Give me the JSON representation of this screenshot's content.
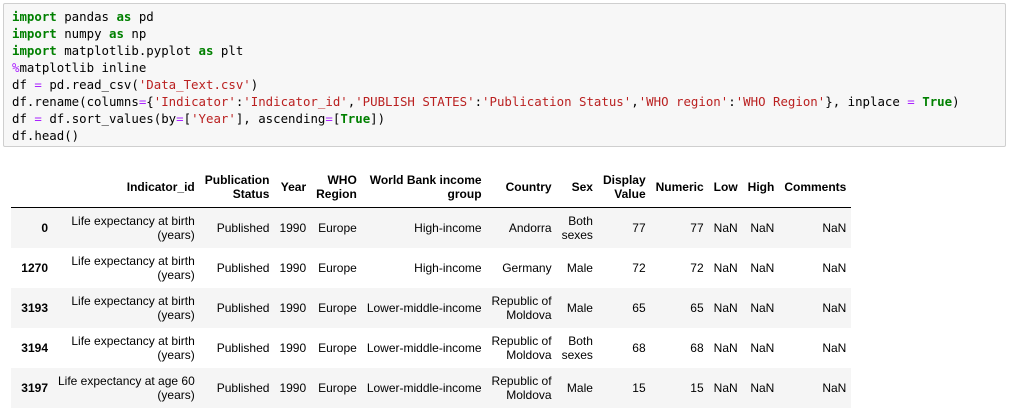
{
  "code_cell": {
    "lines": [
      [
        {
          "t": "import",
          "c": "kw"
        },
        {
          "t": " pandas "
        },
        {
          "t": "as",
          "c": "kw"
        },
        {
          "t": " pd"
        }
      ],
      [
        {
          "t": "import",
          "c": "kw"
        },
        {
          "t": " numpy "
        },
        {
          "t": "as",
          "c": "kw"
        },
        {
          "t": " np"
        }
      ],
      [
        {
          "t": "import",
          "c": "kw"
        },
        {
          "t": " matplotlib.pyplot "
        },
        {
          "t": "as",
          "c": "kw"
        },
        {
          "t": " plt"
        }
      ],
      [
        {
          "t": "%",
          "c": "mag"
        },
        {
          "t": "matplotlib inline"
        }
      ],
      [
        {
          "t": "df "
        },
        {
          "t": "=",
          "c": "op"
        },
        {
          "t": " pd.read_csv("
        },
        {
          "t": "'Data_Text.csv'",
          "c": "str"
        },
        {
          "t": ")"
        }
      ],
      [
        {
          "t": "df.rename(columns"
        },
        {
          "t": "=",
          "c": "op"
        },
        {
          "t": "{"
        },
        {
          "t": "'Indicator'",
          "c": "str"
        },
        {
          "t": ":"
        },
        {
          "t": "'Indicator_id'",
          "c": "str"
        },
        {
          "t": ","
        },
        {
          "t": "'PUBLISH STATES'",
          "c": "str"
        },
        {
          "t": ":"
        },
        {
          "t": "'Publication Status'",
          "c": "str"
        },
        {
          "t": ","
        },
        {
          "t": "'WHO region'",
          "c": "str"
        },
        {
          "t": ":"
        },
        {
          "t": "'WHO Region'",
          "c": "str"
        },
        {
          "t": "}, inplace "
        },
        {
          "t": "=",
          "c": "op"
        },
        {
          "t": " "
        },
        {
          "t": "True",
          "c": "bool"
        },
        {
          "t": ")"
        }
      ],
      [
        {
          "t": "df "
        },
        {
          "t": "=",
          "c": "op"
        },
        {
          "t": " df.sort_values(by"
        },
        {
          "t": "=",
          "c": "op"
        },
        {
          "t": "["
        },
        {
          "t": "'Year'",
          "c": "str"
        },
        {
          "t": "], ascending"
        },
        {
          "t": "=",
          "c": "op"
        },
        {
          "t": "["
        },
        {
          "t": "True",
          "c": "bool"
        },
        {
          "t": "])"
        }
      ],
      [
        {
          "t": "df.head()"
        }
      ]
    ]
  },
  "table": {
    "columns": [
      [
        "Indicator_id"
      ],
      [
        "Publication",
        "Status"
      ],
      [
        "Year"
      ],
      [
        "WHO",
        "Region"
      ],
      [
        "World Bank income",
        "group"
      ],
      [
        "Country"
      ],
      [
        "Sex"
      ],
      [
        "Display",
        "Value"
      ],
      [
        "Numeric"
      ],
      [
        "Low"
      ],
      [
        "High"
      ],
      [
        "Comments"
      ]
    ],
    "rows": [
      {
        "index": "0",
        "cells": [
          [
            "Life expectancy at birth",
            "(years)"
          ],
          [
            "Published"
          ],
          [
            "1990"
          ],
          [
            "Europe"
          ],
          [
            "High-income"
          ],
          [
            "Andorra"
          ],
          [
            "Both",
            "sexes"
          ],
          [
            "77"
          ],
          [
            "77"
          ],
          [
            "NaN"
          ],
          [
            "NaN"
          ],
          [
            "NaN"
          ]
        ]
      },
      {
        "index": "1270",
        "cells": [
          [
            "Life expectancy at birth",
            "(years)"
          ],
          [
            "Published"
          ],
          [
            "1990"
          ],
          [
            "Europe"
          ],
          [
            "High-income"
          ],
          [
            "Germany"
          ],
          [
            "Male"
          ],
          [
            "72"
          ],
          [
            "72"
          ],
          [
            "NaN"
          ],
          [
            "NaN"
          ],
          [
            "NaN"
          ]
        ]
      },
      {
        "index": "3193",
        "cells": [
          [
            "Life expectancy at birth",
            "(years)"
          ],
          [
            "Published"
          ],
          [
            "1990"
          ],
          [
            "Europe"
          ],
          [
            "Lower-middle-income"
          ],
          [
            "Republic of",
            "Moldova"
          ],
          [
            "Male"
          ],
          [
            "65"
          ],
          [
            "65"
          ],
          [
            "NaN"
          ],
          [
            "NaN"
          ],
          [
            "NaN"
          ]
        ]
      },
      {
        "index": "3194",
        "cells": [
          [
            "Life expectancy at birth",
            "(years)"
          ],
          [
            "Published"
          ],
          [
            "1990"
          ],
          [
            "Europe"
          ],
          [
            "Lower-middle-income"
          ],
          [
            "Republic of",
            "Moldova"
          ],
          [
            "Both",
            "sexes"
          ],
          [
            "68"
          ],
          [
            "68"
          ],
          [
            "NaN"
          ],
          [
            "NaN"
          ],
          [
            "NaN"
          ]
        ]
      },
      {
        "index": "3197",
        "cells": [
          [
            "Life expectancy at age 60",
            "(years)"
          ],
          [
            "Published"
          ],
          [
            "1990"
          ],
          [
            "Europe"
          ],
          [
            "Lower-middle-income"
          ],
          [
            "Republic of",
            "Moldova"
          ],
          [
            "Male"
          ],
          [
            "15"
          ],
          [
            "15"
          ],
          [
            "NaN"
          ],
          [
            "NaN"
          ],
          [
            "NaN"
          ]
        ]
      }
    ]
  }
}
